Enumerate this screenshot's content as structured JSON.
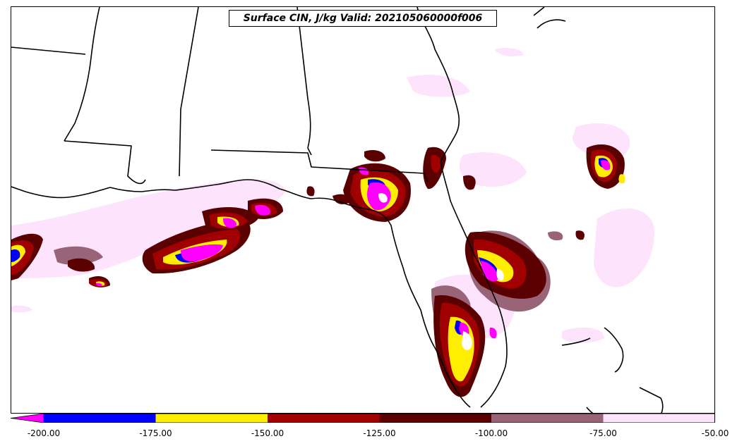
{
  "title": "Surface CIN, J/kg Valid: 202105060000f006",
  "colorbar": {
    "extend_color": "#ff00ff",
    "bins": [
      {
        "color": "#0000ff"
      },
      {
        "color": "#ffee00"
      },
      {
        "color": "#a00000"
      },
      {
        "color": "#5a0000"
      },
      {
        "color": "#9a6478"
      },
      {
        "color": "#fde3fb"
      }
    ],
    "labels": [
      "-200.00",
      "-175.00",
      "-150.00",
      "-125.00",
      "-100.00",
      "-75.00",
      "-50.00"
    ]
  },
  "legend_levels": [
    -200,
    -175,
    -150,
    -125,
    -100,
    -75,
    -50
  ],
  "field_colors": {
    "below_200": "#ff00ff",
    "n200_175": "#0000ff",
    "n175_150": "#ffee00",
    "n150_125": "#a00000",
    "n125_100": "#5a0000",
    "n100_75": "#9a6478",
    "n75_50": "#fde3fb"
  }
}
